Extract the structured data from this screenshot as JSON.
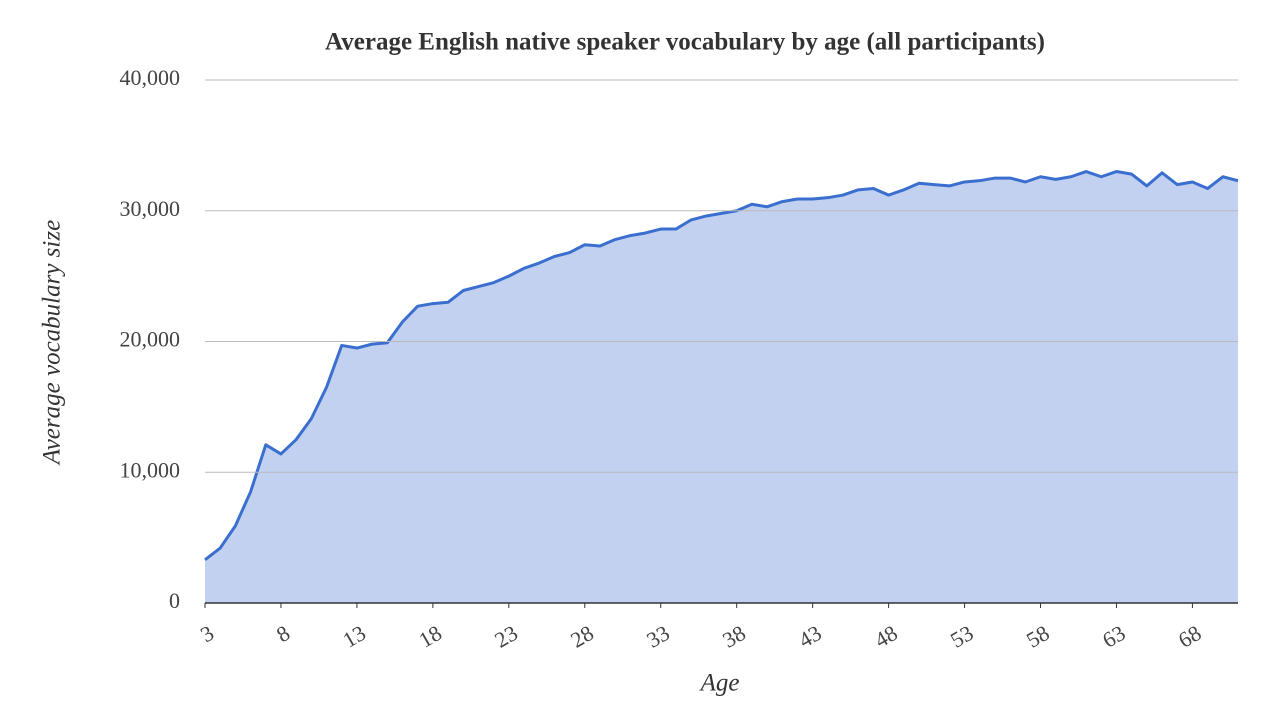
{
  "chart_data": {
    "type": "area",
    "title": "Average English native speaker vocabulary by age (all participants)",
    "x_label": "Age",
    "y_label": "Average vocabulary size",
    "x": [
      3,
      4,
      5,
      6,
      7,
      8,
      9,
      10,
      11,
      12,
      13,
      14,
      15,
      16,
      17,
      18,
      19,
      20,
      21,
      22,
      23,
      24,
      25,
      26,
      27,
      28,
      29,
      30,
      31,
      32,
      33,
      34,
      35,
      36,
      37,
      38,
      39,
      40,
      41,
      42,
      43,
      44,
      45,
      46,
      47,
      48,
      49,
      50,
      51,
      52,
      53,
      54,
      55,
      56,
      57,
      58,
      59,
      60,
      61,
      62,
      63,
      64,
      65,
      66,
      67,
      68,
      69,
      70,
      71
    ],
    "series": [
      {
        "color": "#3a6fd0",
        "fill": "#c2d1f0",
        "values": [
          3300,
          4200,
          5900,
          8500,
          12100,
          11400,
          12500,
          14100,
          16500,
          19700,
          19500,
          19800,
          19900,
          21500,
          22700,
          22900,
          23000,
          23900,
          24200,
          24500,
          25000,
          25600,
          26000,
          26500,
          26800,
          27400,
          27300,
          27800,
          28100,
          28300,
          28600,
          28600,
          29300,
          29600,
          29800,
          30000,
          30500,
          30300,
          30700,
          30900,
          30900,
          31000,
          31200,
          31600,
          31700,
          31200,
          31600,
          32100,
          32000,
          31900,
          32200,
          32300,
          32500,
          32500,
          32200,
          32600,
          32400,
          32600,
          33000,
          32600,
          33000,
          32800,
          31900,
          32900,
          32000,
          32200,
          31700,
          32600,
          32300
        ]
      }
    ],
    "xlim": [
      3,
      71
    ],
    "xticks": [
      3,
      8,
      13,
      18,
      23,
      28,
      33,
      38,
      43,
      48,
      53,
      58,
      63,
      68
    ],
    "ylim": [
      0,
      40000
    ],
    "yticks": [
      0,
      {
        "value": 10000,
        "label": "10,000"
      },
      {
        "value": 20000,
        "label": "20,000"
      },
      {
        "value": 30000,
        "label": "30,000"
      },
      {
        "value": 40000,
        "label": "40,000"
      }
    ],
    "grid": true
  }
}
